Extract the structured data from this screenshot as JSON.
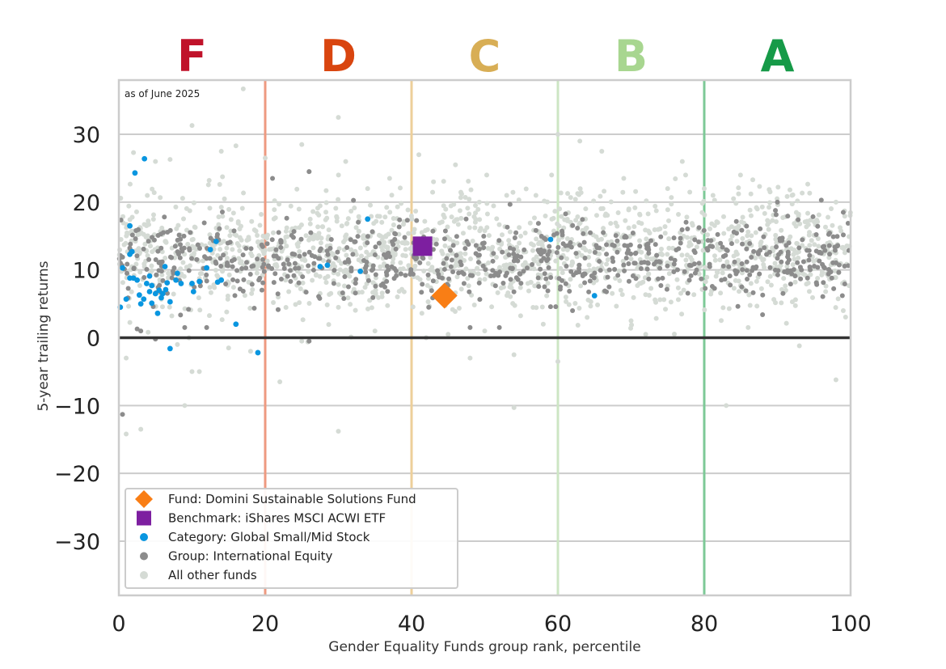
{
  "chart_data": {
    "type": "scatter",
    "note": "as of June 2025",
    "xlabel": "Gender Equality Funds group rank, percentile",
    "ylabel": "5-year trailing returns",
    "xlim": [
      0,
      100
    ],
    "ylim": [
      -38,
      38
    ],
    "x_ticks": [
      0,
      20,
      40,
      60,
      80,
      100
    ],
    "y_ticks": [
      -30,
      -20,
      -10,
      0,
      10,
      20,
      30
    ],
    "grid": "horizontal",
    "zero_line": 0,
    "legend_placement": "lower-left",
    "grade_bands": [
      {
        "grade": "F",
        "from": 0,
        "to": 20,
        "color": "#c0122a",
        "line_color": "#ee9a80"
      },
      {
        "grade": "D",
        "from": 20,
        "to": 40,
        "color": "#d9450f",
        "line_color": "#edcf9a"
      },
      {
        "grade": "C",
        "from": 40,
        "to": 60,
        "color": "#d8ae55",
        "line_color": "#cde6c4"
      },
      {
        "grade": "B",
        "from": 60,
        "to": 80,
        "color": "#a8d690",
        "line_color": "#7dc997"
      },
      {
        "grade": "A",
        "from": 80,
        "to": 100,
        "color": "#169a48",
        "line_color": "#7dc997"
      }
    ],
    "boundaries": [
      20,
      40,
      60,
      80,
      100
    ],
    "series": [
      {
        "name": "All other funds",
        "color": "#d5dbd5",
        "marker": "circle",
        "count": 1600,
        "approx_distribution": {
          "mean": 12.5,
          "sd": 4.3
        },
        "points": [
          [
            2,
            27.3
          ],
          [
            5,
            26
          ],
          [
            7,
            26.3
          ],
          [
            10,
            31.3
          ],
          [
            14,
            27.5
          ],
          [
            16,
            28.3
          ],
          [
            17,
            36.7
          ],
          [
            20,
            26.5
          ],
          [
            25,
            28.5
          ],
          [
            26,
            24.5
          ],
          [
            30,
            32.5
          ],
          [
            31,
            26
          ],
          [
            34,
            22
          ],
          [
            37,
            23.5
          ],
          [
            41,
            27
          ],
          [
            43,
            23
          ],
          [
            46,
            25.5
          ],
          [
            53,
            21
          ],
          [
            57,
            21
          ],
          [
            60,
            30
          ],
          [
            63,
            29
          ],
          [
            66,
            27.5
          ],
          [
            69,
            23.5
          ],
          [
            75,
            22
          ],
          [
            77,
            26
          ],
          [
            80,
            22
          ],
          [
            84,
            20.5
          ],
          [
            89,
            21.5
          ],
          [
            92,
            21
          ],
          [
            98,
            20
          ],
          [
            1,
            -3
          ],
          [
            1,
            -14.2
          ],
          [
            3,
            -13.5
          ],
          [
            9,
            -10
          ],
          [
            10,
            -5
          ],
          [
            11,
            -5
          ],
          [
            22,
            -6.5
          ],
          [
            30,
            -13.8
          ],
          [
            48,
            -3
          ],
          [
            54,
            -2.5
          ],
          [
            54,
            -10.3
          ],
          [
            60,
            -3.5
          ],
          [
            83,
            -10
          ],
          [
            93,
            -1.2
          ],
          [
            98,
            -6.2
          ],
          [
            4,
            0.8
          ],
          [
            8,
            -1
          ],
          [
            15,
            -1.5
          ],
          [
            18,
            -2
          ],
          [
            25,
            -0.5
          ],
          [
            35,
            1
          ],
          [
            42,
            0
          ],
          [
            45,
            0.5
          ],
          [
            50,
            1
          ],
          [
            58,
            2
          ],
          [
            64,
            3
          ],
          [
            70,
            2.5
          ],
          [
            72,
            0.5
          ],
          [
            86,
            1.5
          ],
          [
            99,
            4
          ]
        ]
      },
      {
        "name": "Group: International Equity",
        "color": "#8c8c8c",
        "marker": "circle",
        "count": 750,
        "approx_distribution": {
          "mean": 11.5,
          "sd": 2.8
        },
        "points": [
          [
            0.5,
            -11.3
          ],
          [
            2.5,
            1.3
          ],
          [
            3,
            1
          ],
          [
            5,
            -0.2
          ],
          [
            9,
            1.5
          ],
          [
            12,
            1.5
          ],
          [
            26,
            -0.5
          ],
          [
            21,
            23.5
          ],
          [
            26,
            24.5
          ],
          [
            48,
            1.5
          ],
          [
            52,
            1.5
          ],
          [
            62,
            4
          ],
          [
            67,
            7.5
          ],
          [
            90,
            20
          ],
          [
            96,
            20.3
          ],
          [
            99,
            18.5
          ]
        ]
      },
      {
        "name": "Category: Global Small/Mid Stock",
        "color": "#0996e0",
        "marker": "circle",
        "count": 48,
        "points": [
          [
            0.2,
            4.5
          ],
          [
            0.5,
            10.3
          ],
          [
            1,
            5.7
          ],
          [
            1.5,
            8.8
          ],
          [
            1.5,
            12.3
          ],
          [
            1.8,
            12.7
          ],
          [
            2,
            8.8
          ],
          [
            2.2,
            24.3
          ],
          [
            2.5,
            8.5
          ],
          [
            2.8,
            6.3
          ],
          [
            3,
            5
          ],
          [
            3.4,
            5.7
          ],
          [
            3.8,
            8
          ],
          [
            4.2,
            6.8
          ],
          [
            4.2,
            9.1
          ],
          [
            4.5,
            7.7
          ],
          [
            4.5,
            5.1
          ],
          [
            5,
            6.5
          ],
          [
            5.3,
            3.6
          ],
          [
            5.5,
            7
          ],
          [
            5.8,
            5.9
          ],
          [
            6,
            6.5
          ],
          [
            6.4,
            7.1
          ],
          [
            6.6,
            8.1
          ],
          [
            7,
            5.3
          ],
          [
            7,
            -1.6
          ],
          [
            7.8,
            8.5
          ],
          [
            8.5,
            8
          ],
          [
            10,
            8
          ],
          [
            10.2,
            6.8
          ],
          [
            11,
            8.3
          ],
          [
            12,
            10.3
          ],
          [
            13.3,
            14.2
          ],
          [
            13.5,
            8.2
          ],
          [
            16,
            2
          ],
          [
            19,
            -2.2
          ],
          [
            27.5,
            10.5
          ],
          [
            28.5,
            10.7
          ],
          [
            33,
            9.8
          ],
          [
            34,
            17.5
          ],
          [
            59,
            14.5
          ],
          [
            65,
            6.2
          ],
          [
            1.5,
            16.5
          ],
          [
            3.5,
            26.4
          ],
          [
            6.3,
            10.5
          ],
          [
            8,
            9.5
          ],
          [
            14,
            8.5
          ],
          [
            12.5,
            13
          ]
        ]
      },
      {
        "name": "Benchmark: iShares MSCI ACWI ETF",
        "color": "#7d1fa0",
        "marker": "square",
        "points": [
          [
            41.5,
            13.5
          ]
        ]
      },
      {
        "name": "Fund: Domini Sustainable Solutions Fund",
        "color": "#f97e15",
        "marker": "diamond",
        "points": [
          [
            44.5,
            6.2
          ]
        ]
      }
    ],
    "legend_order": [
      "Fund: Domini Sustainable Solutions Fund",
      "Benchmark: iShares MSCI ACWI ETF",
      "Category: Global Small/Mid Stock",
      "Group: International Equity",
      "All other funds"
    ]
  }
}
